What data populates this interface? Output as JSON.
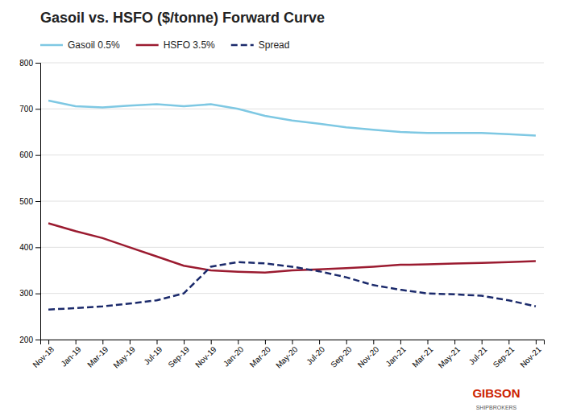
{
  "chart_data": {
    "type": "line",
    "title": "Gasoil vs. HSFO ($/tonne) Forward Curve",
    "categories": [
      "Nov-18",
      "Jan-19",
      "Mar-19",
      "May-19",
      "Jul-19",
      "Sep-19",
      "Nov-19",
      "Jan-20",
      "Mar-20",
      "May-20",
      "Jul-20",
      "Sep-20",
      "Nov-20",
      "Jan-21",
      "Mar-21",
      "May-21",
      "Jul-21",
      "Sep-21",
      "Nov-21"
    ],
    "series": [
      {
        "name": "Gasoil 0.5%",
        "color": "#7EC8E3",
        "line_style": "solid",
        "values": [
          718,
          706,
          703,
          707,
          710,
          706,
          710,
          700,
          685,
          675,
          668,
          660,
          655,
          650,
          648,
          648,
          648,
          645,
          642
        ]
      },
      {
        "name": "HSFO 3.5%",
        "color": "#9B1B30",
        "line_style": "solid",
        "values": [
          452,
          435,
          420,
          400,
          380,
          360,
          350,
          347,
          345,
          350,
          352,
          355,
          358,
          362,
          363,
          365,
          366,
          368,
          370
        ]
      },
      {
        "name": "Spread",
        "color": "#1B2A6B",
        "line_style": "dashed",
        "values": [
          265,
          268,
          272,
          278,
          285,
          300,
          358,
          368,
          365,
          358,
          348,
          335,
          318,
          308,
          300,
          298,
          295,
          285,
          272
        ]
      }
    ],
    "ylim": [
      200,
      800
    ],
    "yticks": [
      200,
      300,
      400,
      500,
      600,
      700,
      800
    ],
    "grid": true,
    "legend": "upper left",
    "annotations": [
      {
        "text": "GIBSON",
        "color": "#CC2200"
      },
      {
        "text": "SHIPBROKERS",
        "color": "#555555"
      }
    ]
  }
}
